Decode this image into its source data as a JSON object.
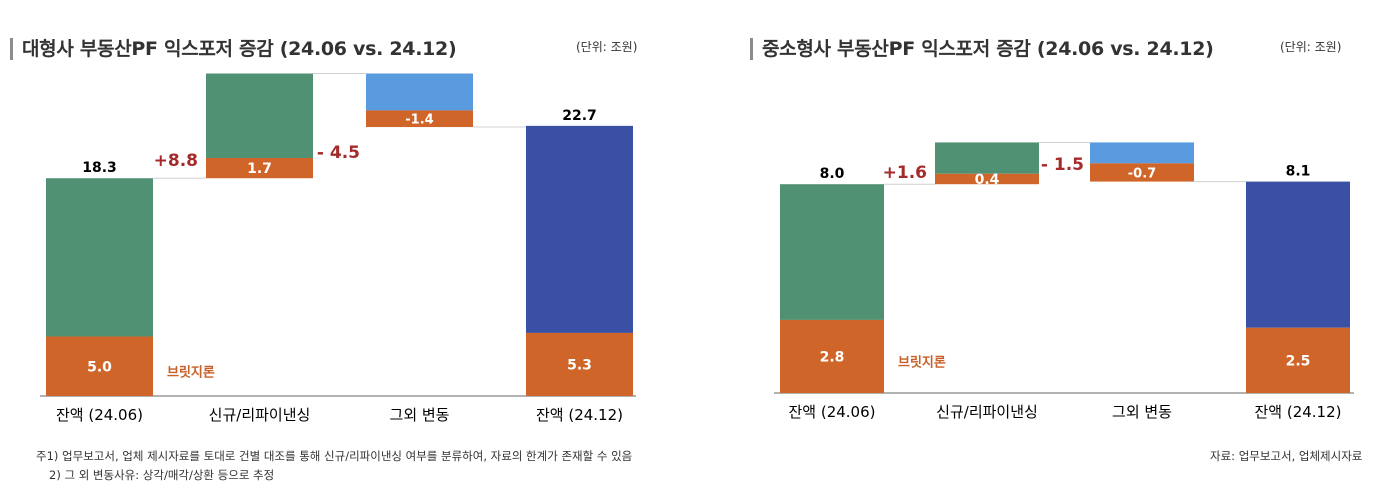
{
  "chart_data": [
    {
      "type": "waterfall",
      "title": "대형사 부동산PF 익스포저 증감 (24.06 vs. 24.12)",
      "unit": "(단위: 조원)",
      "categories": [
        "잔액 (24.06)",
        "신규/리파이낸싱",
        "그외 변동",
        "잔액 (24.12)"
      ],
      "totals": [
        18.3,
        22.7
      ],
      "changes": [
        {
          "label": "+8.8",
          "value": 8.8,
          "bridge_part": 1.7
        },
        {
          "label": "- 4.5",
          "value": -4.5,
          "bridge_part": -1.4
        }
      ],
      "bridge_loan": [
        5.0,
        5.3
      ],
      "bridge_label": "브릿지론",
      "bar_labels": {
        "start_total": "18.3",
        "end_total": "22.7",
        "start_bridge": "5.0",
        "end_bridge": "5.3",
        "new_bridge": "1.7",
        "other_bridge": "-1.4"
      }
    },
    {
      "type": "waterfall",
      "title": "중소형사 부동산PF 익스포저 증감 (24.06 vs. 24.12)",
      "unit": "(단위: 조원)",
      "categories": [
        "잔액 (24.06)",
        "신규/리파이낸싱",
        "그외 변동",
        "잔액 (24.12)"
      ],
      "totals": [
        8.0,
        8.1
      ],
      "changes": [
        {
          "label": "+1.6",
          "value": 1.6,
          "bridge_part": 0.4
        },
        {
          "label": "- 1.5",
          "value": -1.5,
          "bridge_part": -0.7
        }
      ],
      "bridge_loan": [
        2.8,
        2.5
      ],
      "bridge_label": "브릿지론",
      "bar_labels": {
        "start_total": "8.0",
        "end_total": "8.1",
        "start_bridge": "2.8",
        "end_bridge": "2.5",
        "new_bridge": "0.4",
        "other_bridge": "-0.7"
      }
    }
  ],
  "colors": {
    "start_green": "#4f9172",
    "new_green": "#4f9172",
    "bridge_orange": "#d0652a",
    "other_blue": "#5a9be0",
    "end_navy": "#3a50a4",
    "change_label_red": "#a52a2a",
    "bridge_label_orange": "#c8602a"
  },
  "footnotes": {
    "left_line1": "주1) 업무보고서, 업체 제시자료를 토대로 건별 대조를 통해 신규/리파이낸싱 여부를 분류하여, 자료의 한계가 존재할 수 있음",
    "left_line2": "2) 그 외 변동사유: 상각/매각/상환 등으로 추정",
    "right_source": "자료: 업무보고서, 업체제시자료"
  }
}
